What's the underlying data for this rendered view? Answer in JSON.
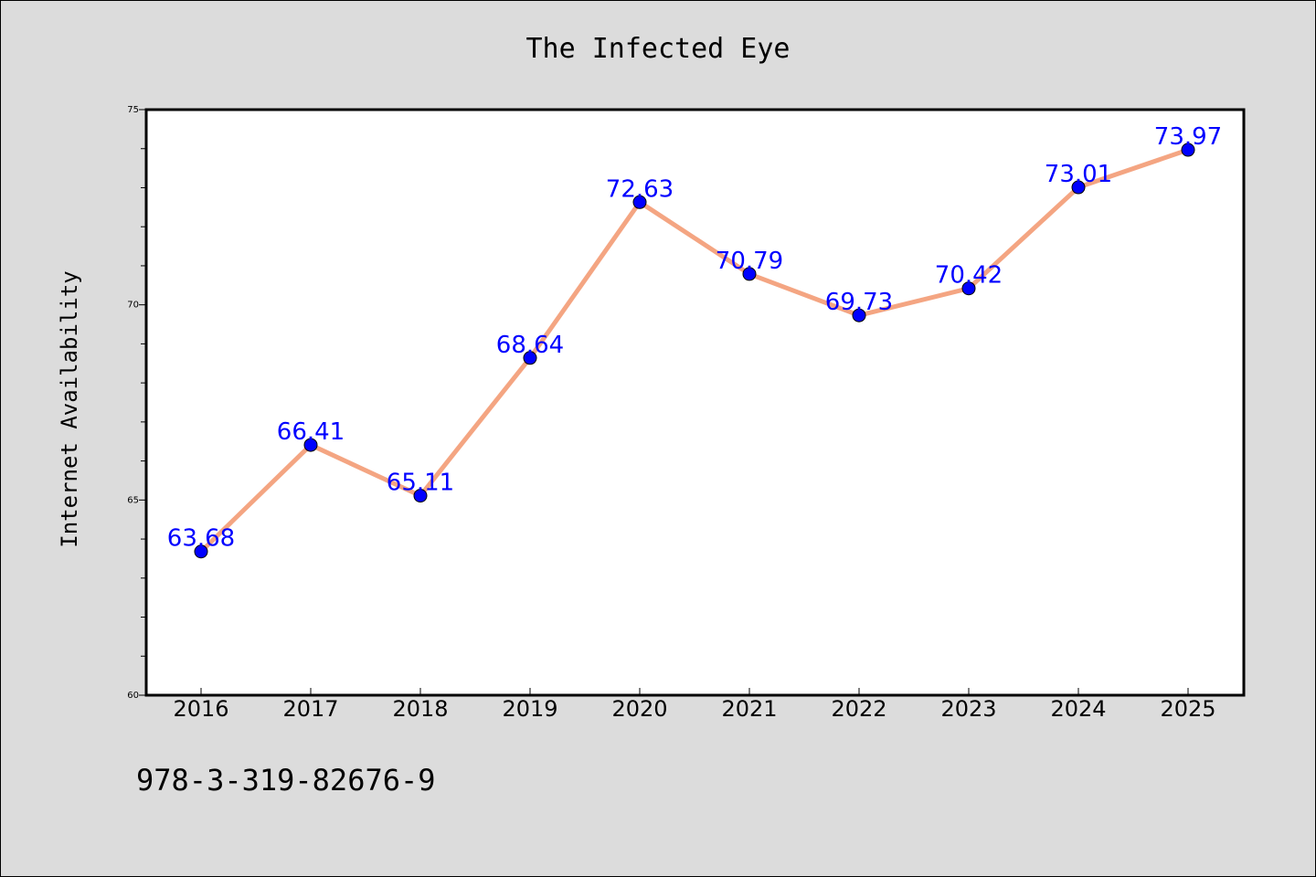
{
  "footnote": "978-3-319-82676-9",
  "colors": {
    "background": "#dcdcdc",
    "plot_background": "#ffffff",
    "line": "#f4a582",
    "marker": "#0000ff",
    "label": "#0000ff"
  },
  "chart_data": {
    "type": "line",
    "title": "The Infected Eye",
    "xlabel": "",
    "ylabel": "Internet Availability",
    "categories": [
      "2016",
      "2017",
      "2018",
      "2019",
      "2020",
      "2021",
      "2022",
      "2023",
      "2024",
      "2025"
    ],
    "series": [
      {
        "values": [
          63.68,
          66.41,
          65.11,
          68.64,
          72.63,
          70.79,
          69.73,
          70.42,
          73.01,
          73.97
        ]
      }
    ],
    "ylim": [
      60,
      75
    ],
    "yticks": [
      60,
      65,
      70,
      75
    ],
    "grid": false,
    "data_labels": true
  }
}
